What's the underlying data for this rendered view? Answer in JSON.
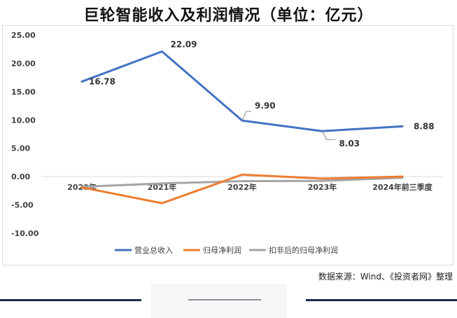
{
  "title": "巨轮智能收入及利润情况（单位：亿元）",
  "source": "数据来源：Wind、《投资者网》整理",
  "colors": {
    "revenue": "#4472c4",
    "net_profit": "#ed7d31",
    "adj_net_profit": "#a5a5a5",
    "footer": "#1f2d4f"
  },
  "chart_data": {
    "type": "line",
    "categories": [
      "2020年",
      "2021年",
      "2022年",
      "2023年",
      "2024年前三季度"
    ],
    "series": [
      {
        "name": "营业总收入",
        "values": [
          16.78,
          22.09,
          9.9,
          8.03,
          8.88
        ],
        "labels": [
          "16.78",
          "22.09",
          "9.90",
          "8.03",
          "8.88"
        ]
      },
      {
        "name": "归母净利润",
        "values": [
          -1.9,
          -4.7,
          0.35,
          -0.35,
          0.0
        ]
      },
      {
        "name": "扣非后的归母净利润",
        "values": [
          -1.8,
          -1.2,
          -0.8,
          -0.75,
          -0.2
        ]
      }
    ],
    "ylim": [
      -10,
      25
    ],
    "yticks": [
      "25.00",
      "20.00",
      "15.00",
      "10.00",
      "5.00",
      "0.00",
      "-5.00",
      "-10.00"
    ],
    "ytick_values": [
      25,
      20,
      15,
      10,
      5,
      0,
      -5,
      -10
    ],
    "legend_position": "bottom",
    "grid": false
  }
}
